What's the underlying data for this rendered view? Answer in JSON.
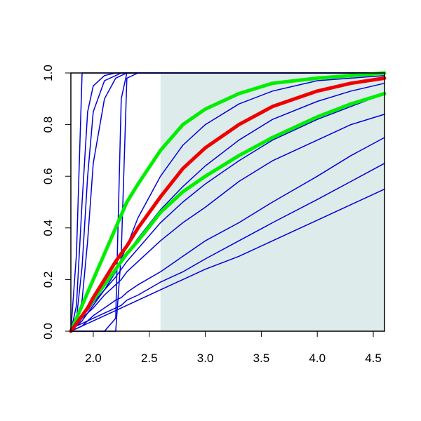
{
  "chart_data": {
    "type": "line",
    "x": [
      1.8,
      1.85,
      1.9,
      1.95,
      2.0,
      2.1,
      2.2,
      2.25,
      2.3,
      2.4,
      2.6,
      2.8,
      3.0,
      3.3,
      3.6,
      4.0,
      4.3,
      4.6
    ],
    "xlim": [
      1.8,
      4.6
    ],
    "ylim": [
      0,
      1
    ],
    "xticks": [
      {
        "value": 2.0,
        "label": "2.0"
      },
      {
        "value": 2.5,
        "label": "2.5"
      },
      {
        "value": 3.0,
        "label": "3.0"
      },
      {
        "value": 3.5,
        "label": "3.5"
      },
      {
        "value": 4.0,
        "label": "4.0"
      },
      {
        "value": 4.5,
        "label": "4.5"
      }
    ],
    "yticks": [
      {
        "value": 0,
        "label": "0.0"
      },
      {
        "value": 0.2,
        "label": "0.2"
      },
      {
        "value": 0.4,
        "label": "0.4"
      },
      {
        "value": 0.6,
        "label": "0.6"
      },
      {
        "value": 0.8,
        "label": "0.8"
      },
      {
        "value": 1.0,
        "label": "1.0"
      }
    ],
    "shaded_x": [
      2.6,
      4.6
    ],
    "shade_color": "#deebeb",
    "series": [
      {
        "color": "#0000dd",
        "width": 1.5,
        "values": [
          0,
          0.3,
          1,
          1,
          1,
          1,
          1,
          1,
          1,
          1,
          1,
          1,
          1,
          1,
          1,
          1,
          1,
          1
        ]
      },
      {
        "color": "#0000dd",
        "width": 1.5,
        "values": [
          0,
          0.1,
          0.5,
          0.85,
          0.95,
          0.99,
          1,
          1,
          1,
          1,
          1,
          1,
          1,
          1,
          1,
          1,
          1,
          1
        ]
      },
      {
        "color": "#0000dd",
        "width": 1.5,
        "values": [
          0,
          0.05,
          0.25,
          0.6,
          0.85,
          0.97,
          0.99,
          1,
          1,
          1,
          1,
          1,
          1,
          1,
          1,
          1,
          1,
          1
        ]
      },
      {
        "color": "#0000dd",
        "width": 1.5,
        "values": [
          0,
          0.03,
          0.12,
          0.35,
          0.65,
          0.9,
          0.98,
          0.99,
          1,
          1,
          1,
          1,
          1,
          1,
          1,
          1,
          1,
          1
        ]
      },
      {
        "color": "#0000dd",
        "width": 1.5,
        "values": [
          0,
          0,
          0,
          0,
          0,
          0,
          0.05,
          0.9,
          1,
          1,
          1,
          1,
          1,
          1,
          1,
          1,
          1,
          1
        ]
      },
      {
        "color": "#0000dd",
        "width": 1.5,
        "values": [
          0,
          0,
          0,
          0,
          0,
          0,
          0,
          0.3,
          0.98,
          1,
          1,
          1,
          1,
          1,
          1,
          1,
          1,
          1
        ]
      },
      {
        "color": "#0000dd",
        "width": 1.5,
        "values": [
          0,
          0.01,
          0.02,
          0.03,
          0.04,
          0.06,
          0.08,
          0.09,
          0.1,
          0.12,
          0.16,
          0.2,
          0.24,
          0.29,
          0.35,
          0.43,
          0.49,
          0.55
        ]
      },
      {
        "color": "#0000dd",
        "width": 1.5,
        "values": [
          0,
          0.01,
          0.02,
          0.04,
          0.05,
          0.07,
          0.09,
          0.1,
          0.12,
          0.14,
          0.19,
          0.23,
          0.28,
          0.35,
          0.42,
          0.51,
          0.58,
          0.65
        ]
      },
      {
        "color": "#0000dd",
        "width": 1.5,
        "values": [
          0,
          0.02,
          0.03,
          0.04,
          0.06,
          0.09,
          0.12,
          0.13,
          0.15,
          0.18,
          0.23,
          0.29,
          0.35,
          0.42,
          0.5,
          0.6,
          0.68,
          0.75
        ]
      },
      {
        "color": "#0000dd",
        "width": 1.5,
        "values": [
          0,
          0.02,
          0.05,
          0.07,
          0.09,
          0.14,
          0.18,
          0.2,
          0.23,
          0.27,
          0.35,
          0.42,
          0.48,
          0.58,
          0.66,
          0.74,
          0.8,
          0.84
        ]
      },
      {
        "color": "#0000dd",
        "width": 1.5,
        "values": [
          0,
          0.03,
          0.06,
          0.08,
          0.11,
          0.16,
          0.21,
          0.24,
          0.27,
          0.32,
          0.42,
          0.5,
          0.57,
          0.66,
          0.74,
          0.82,
          0.87,
          0.92
        ]
      },
      {
        "color": "#0000dd",
        "width": 1.5,
        "values": [
          0,
          0.03,
          0.06,
          0.09,
          0.12,
          0.18,
          0.24,
          0.27,
          0.3,
          0.36,
          0.47,
          0.56,
          0.64,
          0.74,
          0.82,
          0.89,
          0.93,
          0.96
        ]
      },
      {
        "color": "#0000dd",
        "width": 1.5,
        "values": [
          0,
          0.02,
          0.04,
          0.07,
          0.1,
          0.16,
          0.23,
          0.28,
          0.33,
          0.44,
          0.6,
          0.72,
          0.8,
          0.88,
          0.93,
          0.97,
          0.98,
          0.99
        ]
      },
      {
        "color": "#00ee00",
        "width": 5,
        "values": [
          0,
          0.03,
          0.06,
          0.09,
          0.12,
          0.18,
          0.24,
          0.27,
          0.3,
          0.35,
          0.46,
          0.54,
          0.6,
          0.68,
          0.75,
          0.83,
          0.88,
          0.92
        ]
      },
      {
        "color": "#00ee00",
        "width": 5,
        "values": [
          0,
          0.05,
          0.1,
          0.15,
          0.2,
          0.3,
          0.4,
          0.45,
          0.5,
          0.57,
          0.7,
          0.8,
          0.86,
          0.92,
          0.96,
          0.98,
          0.99,
          1.0
        ]
      },
      {
        "color": "#ee0000",
        "width": 5,
        "values": [
          0,
          0.03,
          0.06,
          0.09,
          0.13,
          0.2,
          0.27,
          0.3,
          0.33,
          0.4,
          0.52,
          0.63,
          0.71,
          0.8,
          0.87,
          0.93,
          0.96,
          0.98
        ]
      }
    ]
  }
}
